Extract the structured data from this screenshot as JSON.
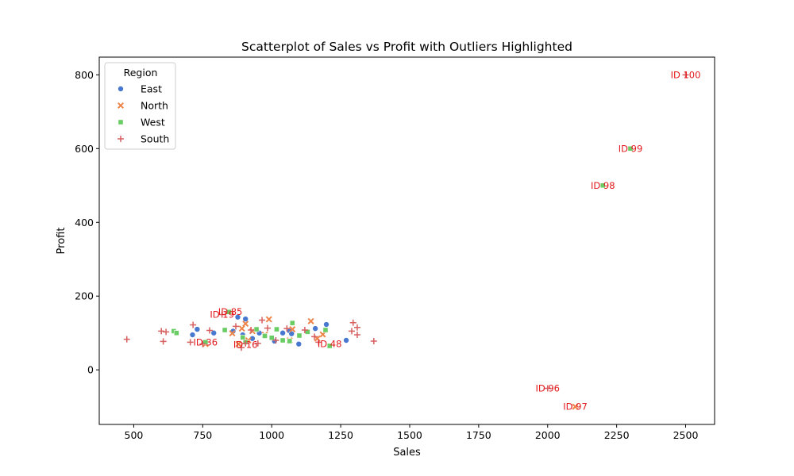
{
  "chart_data": {
    "type": "scatter",
    "title": "Scatterplot of Sales vs Profit with Outliers Highlighted",
    "xlabel": "Sales",
    "ylabel": "Profit",
    "xlim": [
      375,
      2605
    ],
    "ylim": [
      -148,
      848
    ],
    "xticks": [
      500,
      750,
      1000,
      1250,
      1500,
      1750,
      2000,
      2250,
      2500
    ],
    "yticks": [
      0,
      200,
      400,
      600,
      800
    ],
    "grid": false,
    "legend": {
      "title": "Region",
      "placement": "top-left",
      "entries": [
        "East",
        "North",
        "West",
        "South"
      ]
    },
    "colors": {
      "East": "#4878d0",
      "North": "#ee854a",
      "West": "#6acc64",
      "South": "#d65f5f",
      "annotation": "#e3181c"
    },
    "markers": {
      "East": "circle",
      "North": "x",
      "West": "square",
      "South": "plus"
    },
    "series": [
      {
        "name": "East",
        "points": [
          [
            713,
            95
          ],
          [
            730,
            110
          ],
          [
            790,
            100
          ],
          [
            860,
            105
          ],
          [
            877,
            143
          ],
          [
            895,
            95
          ],
          [
            905,
            138
          ],
          [
            930,
            85
          ],
          [
            955,
            100
          ],
          [
            1010,
            78
          ],
          [
            1040,
            100
          ],
          [
            1065,
            105
          ],
          [
            1072,
            98
          ],
          [
            1098,
            70
          ],
          [
            1158,
            112
          ],
          [
            1198,
            123
          ],
          [
            1270,
            80
          ]
        ]
      },
      {
        "name": "North",
        "points": [
          [
            760,
            70
          ],
          [
            857,
            99
          ],
          [
            880,
            70
          ],
          [
            892,
            112
          ],
          [
            905,
            125
          ],
          [
            915,
            80
          ],
          [
            930,
            105
          ],
          [
            975,
            95
          ],
          [
            990,
            137
          ],
          [
            1065,
            80
          ],
          [
            1075,
            110
          ],
          [
            1142,
            132
          ],
          [
            1165,
            85
          ],
          [
            1185,
            96
          ],
          [
            2100,
            -100
          ]
        ]
      },
      {
        "name": "West",
        "points": [
          [
            645,
            105
          ],
          [
            655,
            100
          ],
          [
            760,
            75
          ],
          [
            830,
            108
          ],
          [
            845,
            157
          ],
          [
            895,
            88
          ],
          [
            905,
            75
          ],
          [
            945,
            110
          ],
          [
            975,
            92
          ],
          [
            1000,
            87
          ],
          [
            1018,
            110
          ],
          [
            1040,
            80
          ],
          [
            1065,
            78
          ],
          [
            1075,
            127
          ],
          [
            1100,
            93
          ],
          [
            1130,
            103
          ],
          [
            1195,
            108
          ],
          [
            1210,
            65
          ],
          [
            2200,
            500
          ],
          [
            2300,
            600
          ]
        ]
      },
      {
        "name": "South",
        "points": [
          [
            475,
            83
          ],
          [
            600,
            105
          ],
          [
            607,
            77
          ],
          [
            617,
            103
          ],
          [
            705,
            75
          ],
          [
            715,
            122
          ],
          [
            750,
            70
          ],
          [
            775,
            107
          ],
          [
            820,
            150
          ],
          [
            870,
            118
          ],
          [
            890,
            60
          ],
          [
            905,
            72
          ],
          [
            925,
            108
          ],
          [
            950,
            72
          ],
          [
            965,
            135
          ],
          [
            985,
            113
          ],
          [
            1015,
            80
          ],
          [
            1055,
            112
          ],
          [
            1120,
            108
          ],
          [
            1155,
            90
          ],
          [
            1170,
            75
          ],
          [
            1290,
            105
          ],
          [
            1295,
            128
          ],
          [
            1310,
            95
          ],
          [
            1310,
            115
          ],
          [
            1370,
            78
          ],
          [
            2000,
            -50
          ],
          [
            2500,
            800
          ]
        ]
      }
    ],
    "annotations": [
      {
        "text": "ID 100",
        "x": 2500,
        "y": 800
      },
      {
        "text": "ID 99",
        "x": 2300,
        "y": 600
      },
      {
        "text": "ID 98",
        "x": 2200,
        "y": 500
      },
      {
        "text": "ID 96",
        "x": 2000,
        "y": -50
      },
      {
        "text": "ID 97",
        "x": 2100,
        "y": -100
      },
      {
        "text": "ID 85",
        "x": 850,
        "y": 157
      },
      {
        "text": "ID 19",
        "x": 820,
        "y": 150
      },
      {
        "text": "ID 36",
        "x": 760,
        "y": 75
      },
      {
        "text": "ID 16",
        "x": 905,
        "y": 68
      },
      {
        "text": "ID 48",
        "x": 1210,
        "y": 70
      }
    ]
  }
}
